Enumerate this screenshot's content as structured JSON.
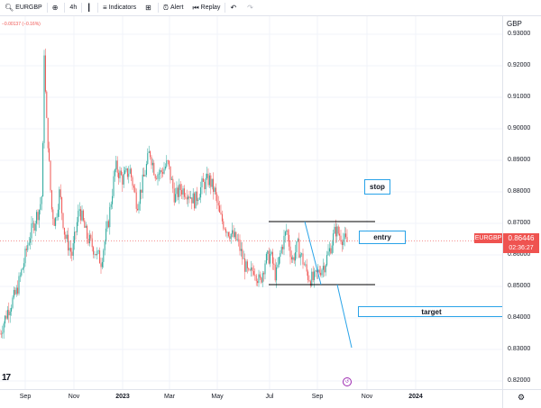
{
  "toolbar": {
    "symbol": "EURGBP",
    "interval": "4h",
    "indicators_label": "Indicators",
    "alert_label": "Alert",
    "replay_label": "Replay"
  },
  "legend": {
    "change": "−0.00137 (−0.16%)"
  },
  "axis": {
    "currency": "GBP",
    "price_labels": [
      "0.93000",
      "0.92000",
      "0.91000",
      "0.90000",
      "0.89000",
      "0.88000",
      "0.87000",
      "0.86000",
      "0.85000",
      "0.84000",
      "0.83000",
      "0.82000"
    ],
    "time_labels": [
      {
        "text": "Sep",
        "bold": false
      },
      {
        "text": "Nov",
        "bold": false
      },
      {
        "text": "2023",
        "bold": true
      },
      {
        "text": "Mar",
        "bold": false
      },
      {
        "text": "May",
        "bold": false
      },
      {
        "text": "Jul",
        "bold": false
      },
      {
        "text": "Sep",
        "bold": false
      },
      {
        "text": "Nov",
        "bold": false
      },
      {
        "text": "2024",
        "bold": true
      }
    ]
  },
  "price_tag": {
    "symbol": "EURGBP",
    "price": "0.86446",
    "countdown": "02:36:27"
  },
  "annotations": {
    "stop": "stop",
    "entry": "entry",
    "target": "target"
  },
  "colors": {
    "up": "#26a69a",
    "down": "#ef5350",
    "accent": "#29a3e8"
  },
  "icons": {
    "search": "search-icon",
    "add": "plus-circle-icon",
    "indicators": "indicators-icon",
    "alert": "alarm-clock-icon",
    "replay": "replay-icon",
    "undo": "undo-icon",
    "redo": "redo-icon",
    "settings": "gear-icon",
    "goto": "goto-date-icon",
    "logo": "tradingview-logo"
  }
}
